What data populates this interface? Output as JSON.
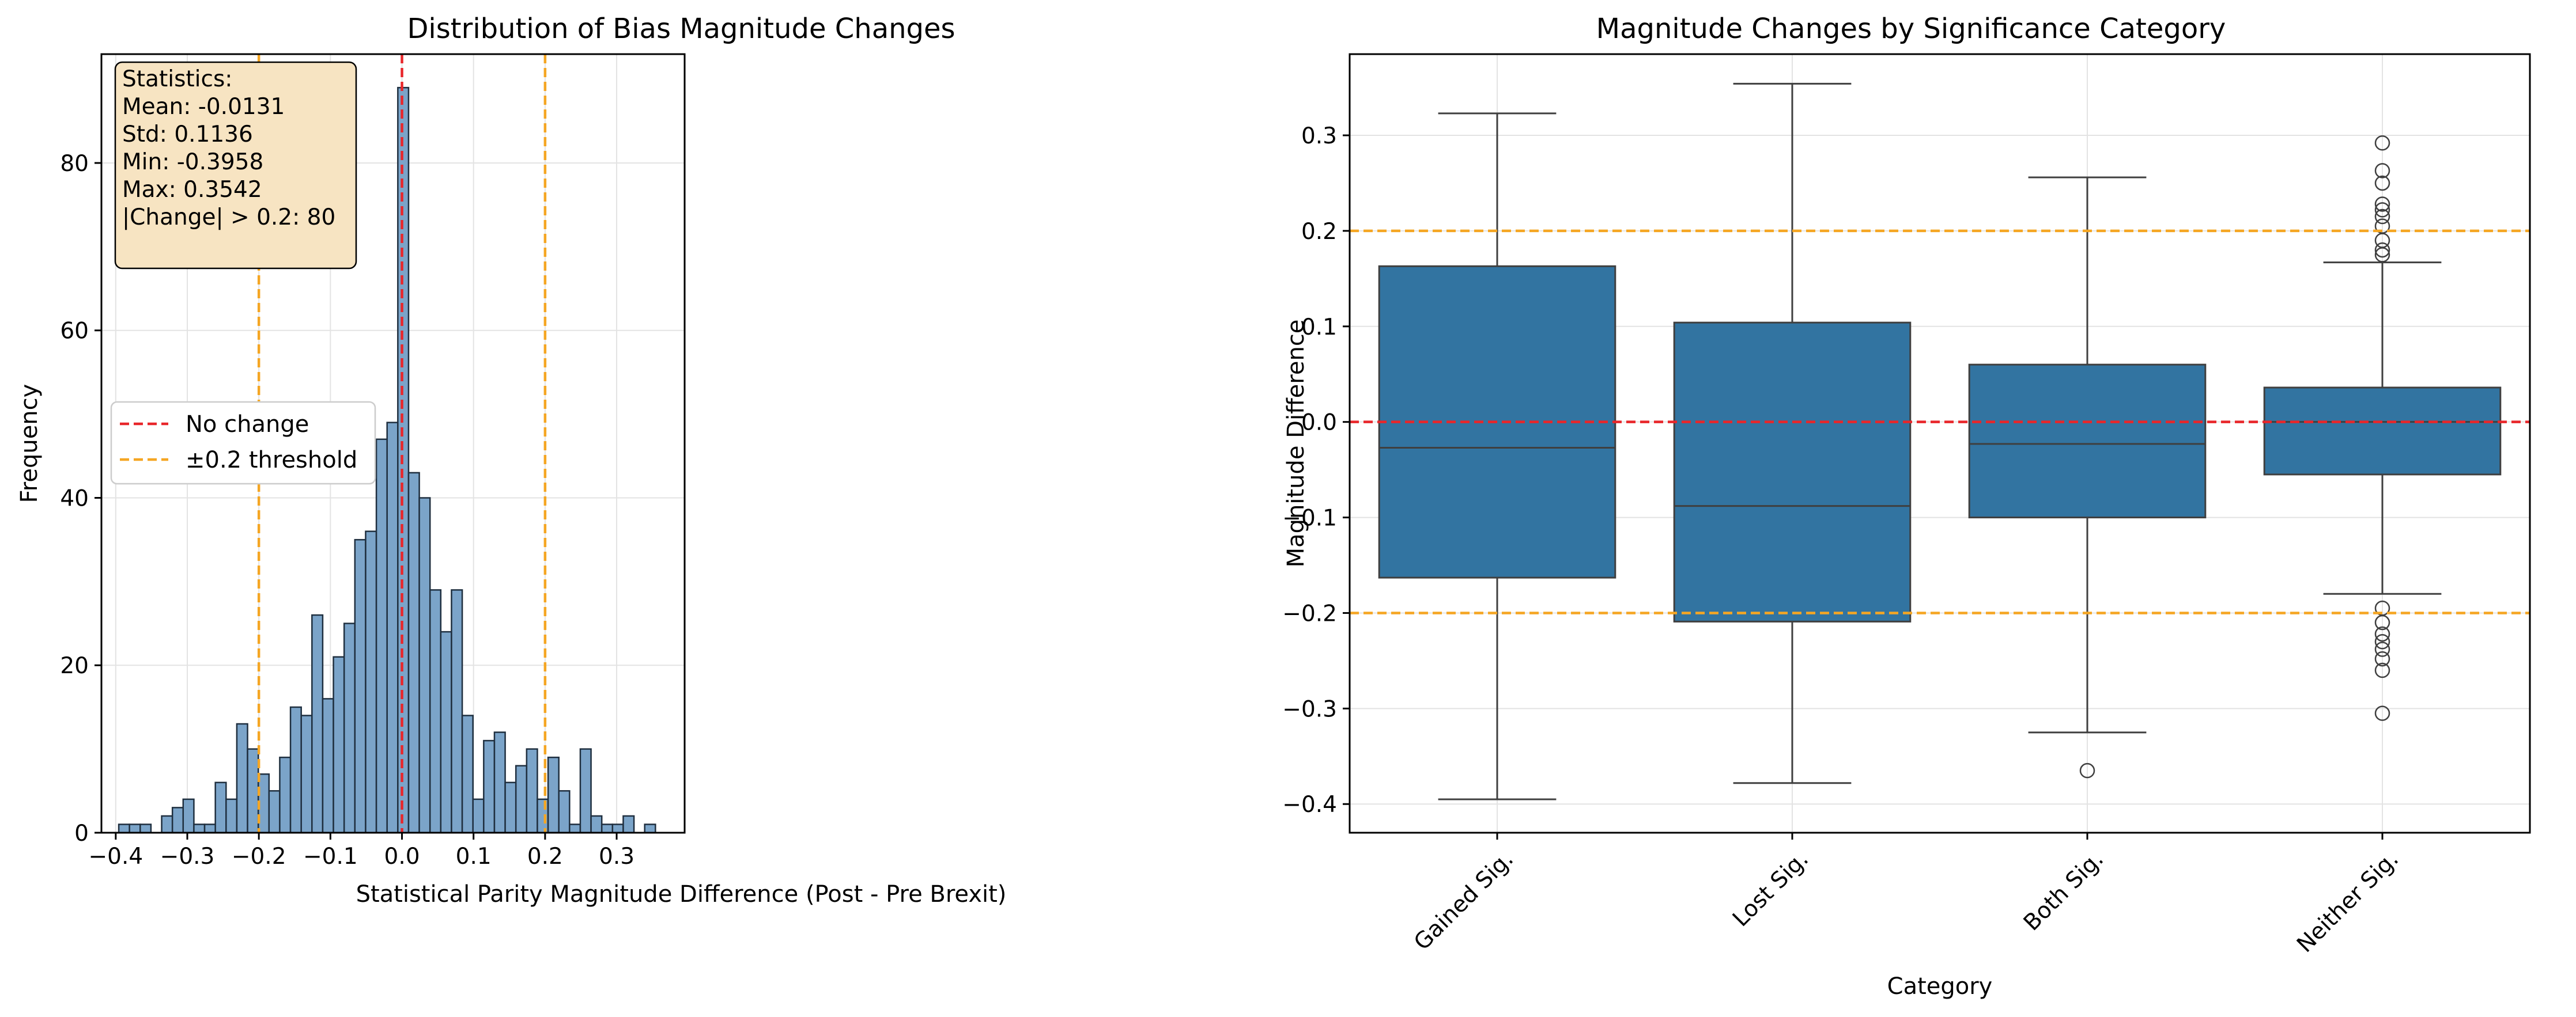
{
  "colors": {
    "bar_fill": "#7ba4c9",
    "bar_edge": "#1f2f3f",
    "box_fill": "#3274a1",
    "box_edge": "#3f3f3f",
    "no_change": "#e8262a",
    "threshold": "#f5a623",
    "stats_box_fill": "#f7e4c2",
    "grid": "#e3e3e3"
  },
  "chart_data": [
    {
      "type": "bar",
      "title": "Distribution of Bias Magnitude Changes",
      "xlabel": "Statistical Parity Magnitude Difference (Post - Pre Brexit)",
      "ylabel": "Frequency",
      "xlim": [
        -0.42,
        0.395
      ],
      "ylim": [
        0,
        93
      ],
      "xticks": [
        -0.4,
        -0.3,
        -0.2,
        -0.1,
        0.0,
        0.1,
        0.2,
        0.3
      ],
      "xtick_labels": [
        "−0.4",
        "−0.3",
        "−0.2",
        "−0.1",
        "0.0",
        "0.1",
        "0.2",
        "0.3"
      ],
      "yticks": [
        0,
        20,
        40,
        60,
        80
      ],
      "ytick_labels": [
        "0",
        "20",
        "40",
        "60",
        "80"
      ],
      "grid": true,
      "bin_start": -0.3958,
      "bin_width": 0.015,
      "counts": [
        1,
        1,
        1,
        0,
        2,
        3,
        4,
        1,
        1,
        6,
        4,
        13,
        10,
        7,
        5,
        9,
        15,
        14,
        26,
        16,
        21,
        25,
        35,
        36,
        47,
        49,
        89,
        43,
        40,
        29,
        24,
        29,
        14,
        4,
        11,
        12,
        6,
        8,
        10,
        4,
        9,
        5,
        1,
        10,
        2,
        1,
        1,
        2,
        0,
        1
      ],
      "reference_lines": {
        "no_change": {
          "label": "No change",
          "x": [
            0.0
          ]
        },
        "threshold": {
          "label": "±0.2 threshold",
          "x": [
            -0.2,
            0.2
          ]
        }
      },
      "legend_position": "center-left",
      "stats_box": {
        "lines": [
          "Statistics:",
          "Mean: -0.0131",
          "Std: 0.1136",
          "Min: -0.3958",
          "Max: 0.3542",
          "|Change| > 0.2: 80"
        ]
      }
    },
    {
      "type": "box",
      "title": "Magnitude Changes by Significance Category",
      "xlabel": "Category",
      "ylabel": "Magnitude Difference",
      "ylim": [
        -0.43,
        0.385
      ],
      "yticks": [
        -0.4,
        -0.3,
        -0.2,
        -0.1,
        0.0,
        0.1,
        0.2,
        0.3
      ],
      "ytick_labels": [
        "−0.4",
        "−0.3",
        "−0.2",
        "−0.1",
        "0.0",
        "0.1",
        "0.2",
        "0.3"
      ],
      "grid": true,
      "reference_lines": {
        "no_change_y": 0.0,
        "threshold_y": [
          -0.2,
          0.2
        ]
      },
      "categories": [
        "Gained Sig.",
        "Lost Sig.",
        "Both Sig.",
        "Neither Sig."
      ],
      "boxes": [
        {
          "category": "Gained Sig.",
          "whisker_low": -0.395,
          "q1": -0.163,
          "median": -0.027,
          "q3": 0.163,
          "whisker_high": 0.323,
          "outliers": []
        },
        {
          "category": "Lost Sig.",
          "whisker_low": -0.378,
          "q1": -0.209,
          "median": -0.088,
          "q3": 0.104,
          "whisker_high": 0.354,
          "outliers": []
        },
        {
          "category": "Both Sig.",
          "whisker_low": -0.325,
          "q1": -0.1,
          "median": -0.023,
          "q3": 0.06,
          "whisker_high": 0.256,
          "outliers": [
            -0.365
          ]
        },
        {
          "category": "Neither Sig.",
          "whisker_low": -0.18,
          "q1": -0.055,
          "median": 0.0,
          "q3": 0.036,
          "whisker_high": 0.167,
          "outliers": [
            0.292,
            0.263,
            0.25,
            0.228,
            0.222,
            0.215,
            0.205,
            0.19,
            0.18,
            0.175,
            -0.195,
            -0.21,
            -0.222,
            -0.23,
            -0.238,
            -0.248,
            -0.26,
            -0.305
          ]
        }
      ]
    }
  ]
}
